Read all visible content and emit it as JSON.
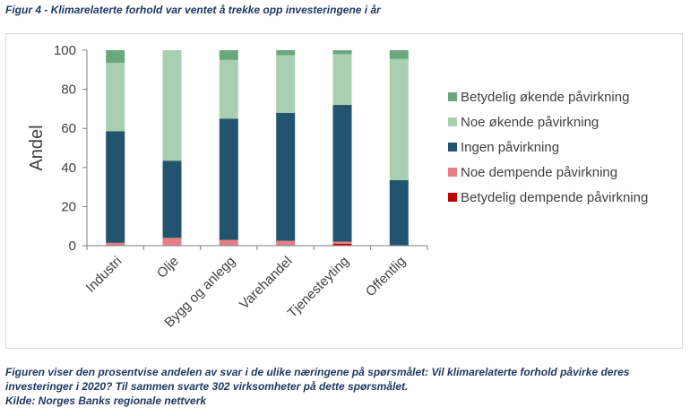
{
  "figure": {
    "title": "Figur 4 - Klimarelaterte forhold var ventet å trekke opp investeringene i år",
    "caption_line1": "Figuren viser den prosentvise andelen av svar i de ulike næringene på spørsmålet: Vil klimarelaterte forhold påvirke deres",
    "caption_line2": "investeringer i 2020? Til sammen svarte 302 virksomheter på dette spørsmålet.",
    "source": "Kilde: Norges Banks regionale nettverk"
  },
  "chart_data": {
    "type": "bar",
    "stacked": true,
    "title": "",
    "xlabel": "",
    "ylabel": "Andel",
    "ylim": [
      0,
      100
    ],
    "yticks": [
      0,
      20,
      40,
      60,
      80,
      100
    ],
    "grid": false,
    "legend_position": "right",
    "categories": [
      "Industri",
      "Olje",
      "Bygg og anlegg",
      "Varehandel",
      "Tjenesteyting",
      "Offentlig"
    ],
    "series": [
      {
        "name": "Betydelig dempende påvirkning",
        "color": "#c00000",
        "values": [
          0,
          0,
          0,
          0,
          1,
          0
        ]
      },
      {
        "name": "Noe dempende påvirkning",
        "color": "#e57f85",
        "values": [
          1.5,
          4,
          3,
          2.5,
          1,
          0
        ]
      },
      {
        "name": "Ingen påvirkning",
        "color": "#23546f",
        "values": [
          57,
          39.5,
          62,
          65.5,
          70,
          33.5
        ]
      },
      {
        "name": "Noe økende påvirkning",
        "color": "#a9cfb1",
        "values": [
          35,
          56.5,
          30,
          29.5,
          26,
          62
        ]
      },
      {
        "name": "Betydelig økende påvirkning",
        "color": "#6aa77d",
        "values": [
          6.5,
          0,
          5,
          2.5,
          2,
          4.5
        ]
      }
    ]
  }
}
